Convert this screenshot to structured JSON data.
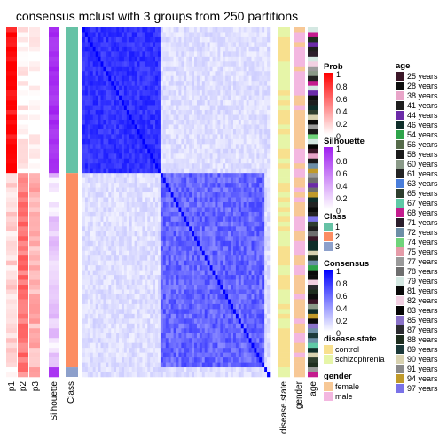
{
  "chart_data": {
    "type": "heatmap",
    "title": "consensus mclust with 3 groups from 250 partitions",
    "n_samples": 72,
    "groups": [
      {
        "class": 1,
        "count": 30,
        "color": "#66C2A5",
        "consensus_block_color": "#4040ff"
      },
      {
        "class": 2,
        "count": 40,
        "color": "#FC8D62",
        "consensus_block_color": "#6060ff"
      },
      {
        "class": 3,
        "count": 2,
        "color": "#8DA0CB",
        "consensus_block_color": "#ffffff"
      }
    ],
    "column_labels": [
      "p1",
      "p2",
      "p3",
      "Silhouette",
      "Class",
      "disease.state",
      "gender",
      "age"
    ],
    "prob_mean_by_group": {
      "p1": [
        0.95,
        0.15,
        0.0
      ],
      "p2": [
        0.05,
        0.55,
        0.5
      ],
      "p3": [
        0.0,
        0.3,
        0.5
      ]
    },
    "legends": {
      "prob": {
        "title": "Prob",
        "ticks": [
          "1",
          "0.8",
          "0.6",
          "0.4",
          "0.2",
          "0"
        ],
        "low": "#ffffff",
        "high": "#ff0000"
      },
      "silhouette": {
        "title": "Silhouette",
        "ticks": [
          "1",
          "0.8",
          "0.6",
          "0.4",
          "0.2",
          "0"
        ],
        "low": "#ffffff",
        "high": "#a020f0"
      },
      "class": {
        "title": "Class",
        "items": [
          {
            "label": "1",
            "color": "#66C2A5"
          },
          {
            "label": "2",
            "color": "#FC8D62"
          },
          {
            "label": "3",
            "color": "#8DA0CB"
          }
        ]
      },
      "consensus": {
        "title": "Consensus",
        "ticks": [
          "1",
          "0.8",
          "0.6",
          "0.4",
          "0.2",
          "0"
        ],
        "low": "#ffffff",
        "high": "#0000ff"
      },
      "disease_state": {
        "title": "disease.state",
        "items": [
          {
            "label": "control",
            "color": "#F8E08E"
          },
          {
            "label": "schizophrenia",
            "color": "#E6F5A8"
          }
        ]
      },
      "gender": {
        "title": "gender",
        "items": [
          {
            "label": "female",
            "color": "#F7C896"
          },
          {
            "label": "male",
            "color": "#F3B7E0"
          }
        ]
      },
      "age": {
        "title": "age",
        "items": [
          {
            "label": "25 years",
            "color": "#3B1728"
          },
          {
            "label": "28 years",
            "color": "#0E0E0E"
          },
          {
            "label": "38 years",
            "color": "#E8A4C8"
          },
          {
            "label": "41 years",
            "color": "#1E1E1E"
          },
          {
            "label": "44 years",
            "color": "#6B2BA8"
          },
          {
            "label": "46 years",
            "color": "#0F2E2A"
          },
          {
            "label": "54 years",
            "color": "#2EA34A"
          },
          {
            "label": "56 years",
            "color": "#556B4A"
          },
          {
            "label": "58 years",
            "color": "#1A1A1A"
          },
          {
            "label": "60 years",
            "color": "#8A9A88"
          },
          {
            "label": "61 years",
            "color": "#232323"
          },
          {
            "label": "63 years",
            "color": "#4A7EDB"
          },
          {
            "label": "65 years",
            "color": "#2E3E2E"
          },
          {
            "label": "67 years",
            "color": "#5FC9A6"
          },
          {
            "label": "68 years",
            "color": "#C41C8E"
          },
          {
            "label": "71 years",
            "color": "#2B1E2B"
          },
          {
            "label": "72 years",
            "color": "#6C8EA6"
          },
          {
            "label": "74 years",
            "color": "#6FD47A"
          },
          {
            "label": "75 years",
            "color": "#E59BA8"
          },
          {
            "label": "77 years",
            "color": "#9A9A9A"
          },
          {
            "label": "78 years",
            "color": "#6E6E6E"
          },
          {
            "label": "79 years",
            "color": "#D4E8E2"
          },
          {
            "label": "81 years",
            "color": "#0A0A0A"
          },
          {
            "label": "82 years",
            "color": "#F2D0E2"
          },
          {
            "label": "83 years",
            "color": "#050505"
          },
          {
            "label": "85 years",
            "color": "#8A72C8"
          },
          {
            "label": "87 years",
            "color": "#2B2B30"
          },
          {
            "label": "88 years",
            "color": "#1E2E1E"
          },
          {
            "label": "89 years",
            "color": "#1C3A3A"
          },
          {
            "label": "90 years",
            "color": "#D8D2B0"
          },
          {
            "label": "91 years",
            "color": "#8A8A8A"
          },
          {
            "label": "94 years",
            "color": "#C09A2A"
          },
          {
            "label": "97 years",
            "color": "#7A72E8"
          }
        ]
      }
    }
  }
}
